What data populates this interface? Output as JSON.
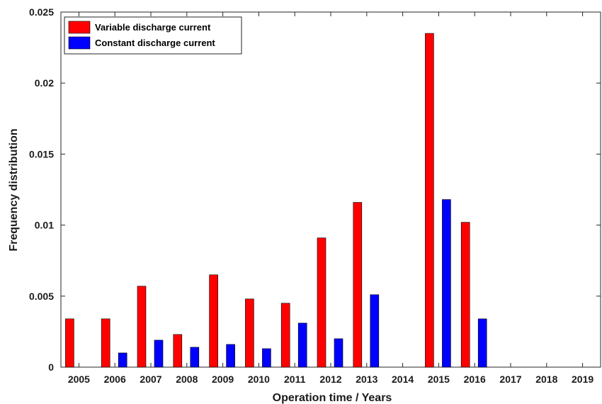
{
  "chart_data": {
    "type": "bar",
    "xlabel": "Operation time / Years",
    "ylabel": "Frequency distribution",
    "categories": [
      "2005",
      "2006",
      "2007",
      "2008",
      "2009",
      "2010",
      "2011",
      "2012",
      "2013",
      "2014",
      "2015",
      "2016",
      "2017",
      "2018",
      "2019"
    ],
    "ylim": [
      0,
      0.025
    ],
    "yticks": [
      "0",
      "0.005",
      "0.01",
      "0.015",
      "0.02",
      "0.025"
    ],
    "ytick_values": [
      0,
      0.005,
      0.01,
      0.015,
      0.02,
      0.025
    ],
    "legend_position": "top-left",
    "grid": false,
    "series": [
      {
        "name": "Variable discharge current",
        "color": "#ff0000",
        "values": [
          0.0034,
          0.0034,
          0.0057,
          0.0023,
          0.0065,
          0.0048,
          0.0045,
          0.0091,
          0.0116,
          0,
          0.0235,
          0.0102,
          0,
          0,
          0
        ]
      },
      {
        "name": "Constant discharge current",
        "color": "#0000ff",
        "values": [
          0,
          0.001,
          0.0019,
          0.0014,
          0.0016,
          0.0013,
          0.0031,
          0.002,
          0.0051,
          0,
          0.0118,
          0.0034,
          0,
          0,
          0
        ]
      }
    ]
  }
}
